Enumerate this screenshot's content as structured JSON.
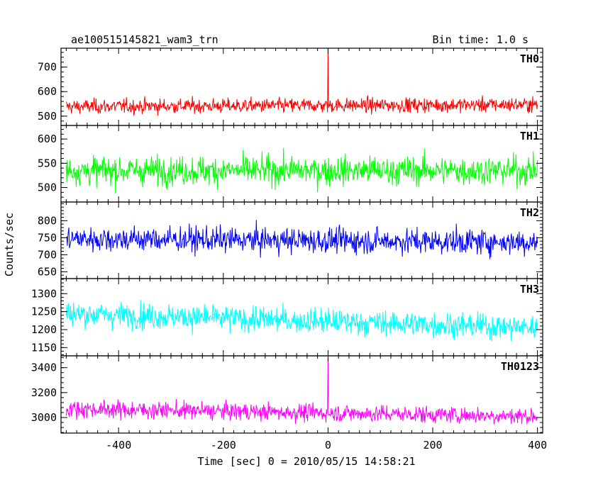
{
  "header": {
    "title": "ae100515145821_wam3_trn",
    "bin_time": "Bin time: 1.0 s"
  },
  "chart_data": {
    "type": "line",
    "xlabel": "Time [sec] 0 = 2010/05/15 14:58:21",
    "ylabel": "Counts/sec",
    "xlim": [
      -510,
      410
    ],
    "x_ticks": [
      -400,
      -200,
      0,
      200,
      400
    ],
    "x_step": 1.0,
    "x_range": [
      -500,
      400
    ],
    "panels": [
      {
        "name": "TH0",
        "color": "#ff0000",
        "ylim": [
          462,
          777
        ],
        "y_ticks": [
          500,
          600,
          700
        ],
        "mean": 543,
        "spread": 28,
        "trend": 8,
        "spike": {
          "x": 0,
          "y": 777
        }
      },
      {
        "name": "TH1",
        "color": "#00ff00",
        "ylim": [
          470,
          628
        ],
        "y_ticks": [
          500,
          550,
          600
        ],
        "mean": 535,
        "spread": 28,
        "trend": 0,
        "spike": null
      },
      {
        "name": "TH2",
        "color": "#0000ff",
        "ylim": [
          630,
          855
        ],
        "y_ticks": [
          650,
          700,
          750,
          800
        ],
        "mean": 742,
        "spread": 35,
        "trend": -10,
        "spike": null
      },
      {
        "name": "TH3",
        "color": "#00ffff",
        "ylim": [
          1127,
          1342
        ],
        "y_ticks": [
          1150,
          1200,
          1250,
          1300
        ],
        "mean": 1225,
        "spread": 33,
        "trend": -40,
        "spike": null
      },
      {
        "name": "TH0123",
        "color": "#ff00ff",
        "ylim": [
          2875,
          3495
        ],
        "y_ticks": [
          3000,
          3200,
          3400
        ],
        "mean": 3040,
        "spread": 65,
        "trend": -60,
        "spike": {
          "x": 0,
          "y": 3480
        }
      }
    ]
  }
}
